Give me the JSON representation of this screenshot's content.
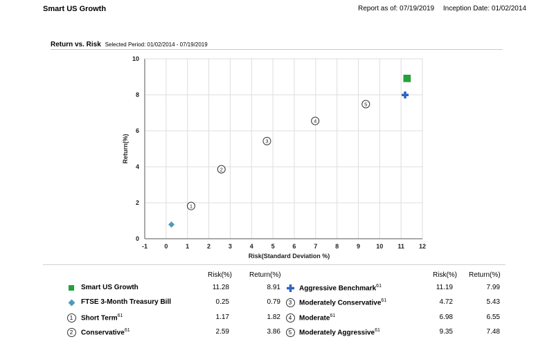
{
  "header": {
    "fund_name": "Smart US Growth",
    "report_as_of": "Report as of: 07/19/2019",
    "inception": "Inception Date: 01/02/2014"
  },
  "section": {
    "title": "Return vs. Risk",
    "selected_period": "Selected Period:  01/02/2014 - 07/19/2019"
  },
  "colors": {
    "fund": "#22a339",
    "tbill": "#4f9ab6",
    "benchmark": "#2c63c4",
    "marker_outline": "#333333"
  },
  "legend": {
    "risk_header": "Risk(%)",
    "return_header": "Return(%)",
    "left": [
      {
        "symbol": "green-square-icon",
        "label": "Smart US Growth",
        "sup": "",
        "risk": "11.28",
        "return": "8.91"
      },
      {
        "symbol": "teal-diamond-icon",
        "label": "FTSE 3-Month Treasury Bill",
        "sup": "",
        "risk": "0.25",
        "return": "0.79"
      },
      {
        "symbol": "circle-1-icon",
        "num": "1",
        "label": "Short Term",
        "sup": "61",
        "risk": "1.17",
        "return": "1.82"
      },
      {
        "symbol": "circle-2-icon",
        "num": "2",
        "label": "Conservative",
        "sup": "61",
        "risk": "2.59",
        "return": "3.86"
      }
    ],
    "right": [
      {
        "symbol": "blue-cross-icon",
        "label": "Aggressive Benchmark",
        "sup": "61",
        "risk": "11.19",
        "return": "7.99"
      },
      {
        "symbol": "circle-3-icon",
        "num": "3",
        "label": "Moderately Conservative",
        "sup": "61",
        "risk": "4.72",
        "return": "5.43"
      },
      {
        "symbol": "circle-4-icon",
        "num": "4",
        "label": "Moderate",
        "sup": "61",
        "risk": "6.98",
        "return": "6.55"
      },
      {
        "symbol": "circle-5-icon",
        "num": "5",
        "label": "Moderately Aggressive",
        "sup": "61",
        "risk": "9.35",
        "return": "7.48"
      }
    ]
  },
  "chart_data": {
    "type": "scatter",
    "xlabel": "Risk(Standard Deviation %)",
    "ylabel": "Return(%)",
    "xlim": [
      -1,
      12
    ],
    "ylim": [
      0,
      10
    ],
    "xticks": [
      -1,
      0,
      1,
      2,
      3,
      4,
      5,
      6,
      7,
      8,
      9,
      10,
      11,
      12
    ],
    "yticks": [
      0,
      2,
      4,
      6,
      8,
      10
    ],
    "grid": true,
    "points": [
      {
        "name": "Smart US Growth",
        "marker": "square",
        "x": 11.28,
        "y": 8.91
      },
      {
        "name": "Aggressive Benchmark",
        "marker": "cross",
        "x": 11.19,
        "y": 7.99
      },
      {
        "name": "FTSE 3-Month Treasury Bill",
        "marker": "diamond",
        "x": 0.25,
        "y": 0.79
      },
      {
        "name": "Short Term",
        "marker": "circle",
        "label": "1",
        "x": 1.17,
        "y": 1.82
      },
      {
        "name": "Conservative",
        "marker": "circle",
        "label": "2",
        "x": 2.59,
        "y": 3.86
      },
      {
        "name": "Moderately Conservative",
        "marker": "circle",
        "label": "3",
        "x": 4.72,
        "y": 5.43
      },
      {
        "name": "Moderate",
        "marker": "circle",
        "label": "4",
        "x": 6.98,
        "y": 6.55
      },
      {
        "name": "Moderately Aggressive",
        "marker": "circle",
        "label": "5",
        "x": 9.35,
        "y": 7.48
      }
    ]
  }
}
